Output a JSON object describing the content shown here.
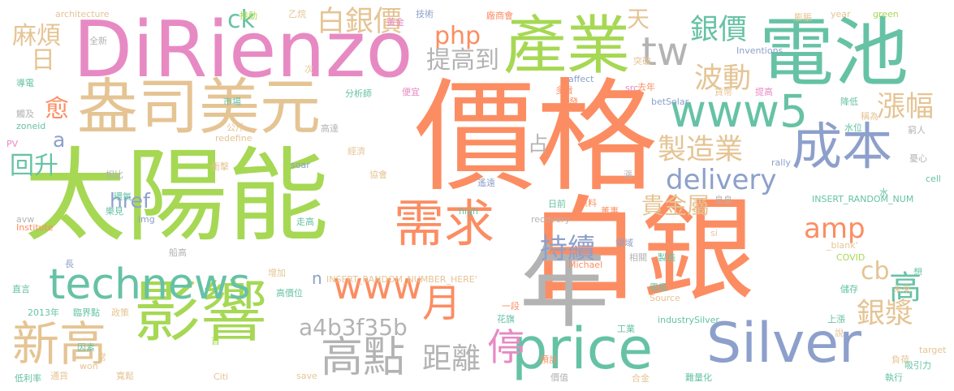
{
  "colors": {
    "background": "#ffffff",
    "orange": "#fc8d62",
    "green": "#a6d854",
    "pink": "#e78ac3",
    "blue": "#8da0cb",
    "teal": "#66c2a5",
    "tan": "#e5c494",
    "yellow": "#ffd92f",
    "gray": "#b3b3b3"
  },
  "words": [
    "價格",
    "白銀",
    "太陽能",
    "DiRienzo",
    "電池",
    "盎司美元",
    "產業",
    "年",
    "影響",
    "price",
    "Silver",
    "需求",
    "成本",
    "www5",
    "technews",
    "新高",
    "高點",
    "距離",
    "www",
    "月",
    "tw",
    "持續",
    "波動",
    "銀價",
    "製造業",
    "delivery",
    "amp",
    "漲幅",
    "a4b3f35b",
    "停",
    "白銀價",
    "php",
    "提高到",
    "銀漿",
    "cb",
    "高",
    "ck",
    "href",
    "回升",
    "貴金屬",
    "麻煩",
    "日",
    "愈",
    "天",
    "占",
    "a",
    "n",
    "architecture",
    "推動",
    "乙烷",
    "黃金",
    "技術",
    "廠商會",
    "year",
    "green",
    "膨脹",
    "Inventions",
    "全新",
    "次",
    "affect",
    "突破",
    "導電",
    "市場",
    "分析師",
    "便宜",
    "多貴",
    "研發",
    "src",
    "去年",
    "提高",
    "觸及",
    "zoneid",
    "betSolar",
    "貨幣",
    "降低",
    "稱為",
    "PV",
    "公斤",
    "高達",
    "redefine",
    "水位",
    "窮人",
    "soar",
    "rally",
    "相比",
    "經濟",
    "衝擊",
    "協會",
    "憂心",
    "遙遠",
    "環氧",
    "cell",
    "漲",
    "日前",
    "原料",
    "董事",
    "息息",
    "INSERT_RANDOM_NUM",
    "avw",
    "樂見",
    "img",
    "水",
    "high",
    "recovery",
    "Institute",
    "走高",
    "領域",
    "_blank'",
    "si",
    "長",
    "船高",
    "相關",
    "製造",
    "COVID",
    "Michael",
    "增加",
    "想",
    "INSERT_RANDOM_NUMBER_HERE'",
    "電極",
    "儲存",
    "未來",
    "直言",
    "高價位",
    "Source",
    "臨界點",
    "政策",
    "2013年",
    "一段",
    "花旗",
    "industrySilver",
    "工業",
    "上漲",
    "說",
    "首",
    "因素",
    "預計",
    "target",
    "常",
    "低利率",
    "通貨",
    "won",
    "寬鬆",
    "Citi",
    "save",
    "價值",
    "合金",
    "難量化",
    "負荷",
    "吸引力",
    "執行"
  ]
}
